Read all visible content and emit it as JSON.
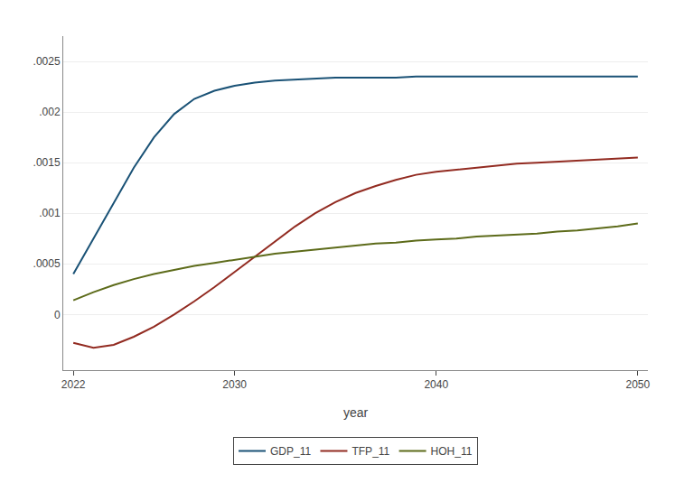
{
  "chart_data": {
    "type": "line",
    "xlabel": "year",
    "x": [
      2022,
      2023,
      2024,
      2025,
      2026,
      2027,
      2028,
      2029,
      2030,
      2031,
      2032,
      2033,
      2034,
      2035,
      2036,
      2037,
      2038,
      2039,
      2040,
      2041,
      2042,
      2043,
      2044,
      2045,
      2046,
      2047,
      2048,
      2049,
      2050
    ],
    "series": [
      {
        "name": "GDP_11",
        "color": "#1a5276",
        "values": [
          0.0004,
          0.00075,
          0.0011,
          0.00145,
          0.00175,
          0.00198,
          0.00213,
          0.00221,
          0.00226,
          0.00229,
          0.00231,
          0.00232,
          0.00233,
          0.00234,
          0.00234,
          0.00234,
          0.00234,
          0.00235,
          0.00235,
          0.00235,
          0.00235,
          0.00235,
          0.00235,
          0.00235,
          0.00235,
          0.00235,
          0.00235,
          0.00235,
          0.00235
        ]
      },
      {
        "name": "TFP_11",
        "color": "#922b21",
        "values": [
          -0.00028,
          -0.00033,
          -0.0003,
          -0.00022,
          -0.00012,
          0.0,
          0.00013,
          0.00027,
          0.00042,
          0.00057,
          0.00072,
          0.00087,
          0.001,
          0.00111,
          0.0012,
          0.00127,
          0.00133,
          0.00138,
          0.00141,
          0.00143,
          0.00145,
          0.00147,
          0.00149,
          0.0015,
          0.00151,
          0.00152,
          0.00153,
          0.00154,
          0.00155
        ]
      },
      {
        "name": "HOH_11",
        "color": "#5d6b1a",
        "values": [
          0.00014,
          0.00022,
          0.00029,
          0.00035,
          0.0004,
          0.00044,
          0.00048,
          0.00051,
          0.00054,
          0.00057,
          0.0006,
          0.00062,
          0.00064,
          0.00066,
          0.00068,
          0.0007,
          0.00071,
          0.00073,
          0.00074,
          0.00075,
          0.00077,
          0.00078,
          0.00079,
          0.0008,
          0.00082,
          0.00083,
          0.00085,
          0.00087,
          0.0009
        ]
      }
    ],
    "xlim": [
      2021.5,
      2050.5
    ],
    "xticks": [
      2022,
      2030,
      2040,
      2050
    ],
    "ylim": [
      -0.00055,
      0.00275
    ],
    "yticks": [
      0,
      {
        "value": 0.0005,
        "label": ".0005"
      },
      {
        "value": 0.001,
        "label": ".001"
      },
      {
        "value": 0.0015,
        "label": ".0015"
      },
      {
        "value": 0.002,
        "label": ".002"
      },
      {
        "value": 0.0025,
        "label": ".0025"
      }
    ],
    "grid": "y",
    "legend": "bottom"
  }
}
